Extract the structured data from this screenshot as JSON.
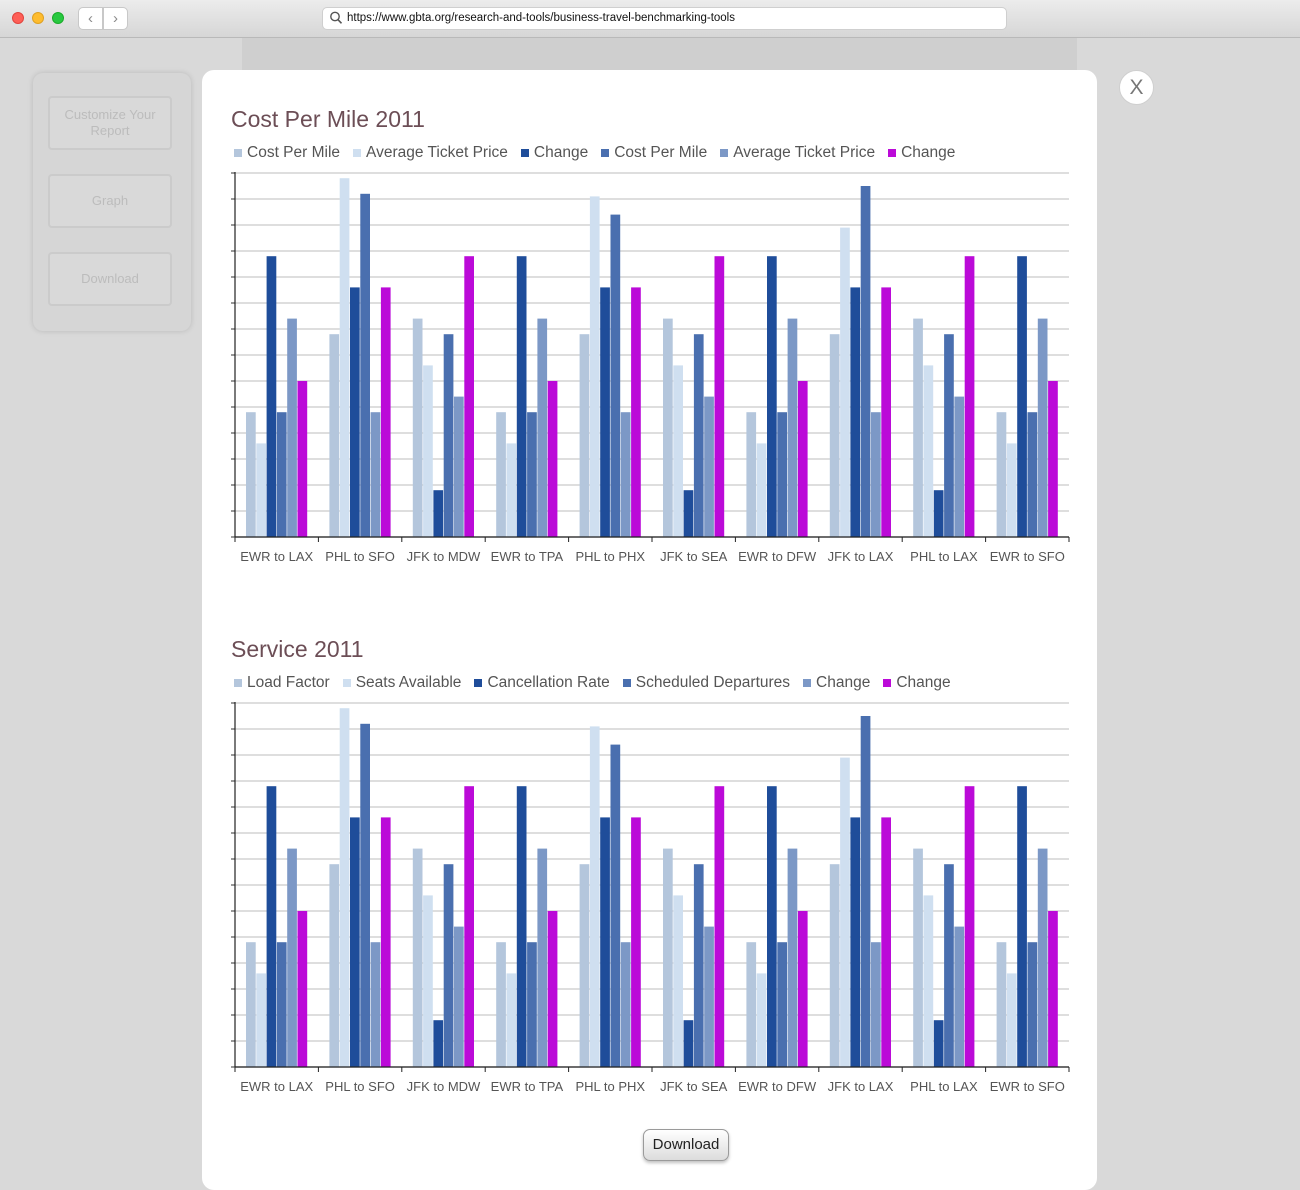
{
  "browser": {
    "url": "https://www.gbta.org/research-and-tools/business-travel-benchmarking-tools",
    "back_label": "‹",
    "forward_label": "›"
  },
  "sidebar": {
    "customize_label": "Customize Your Report",
    "graph_label": "Graph",
    "download_label": "Download"
  },
  "modal": {
    "close_label": "X",
    "download_label": "Download"
  },
  "colors": {
    "series": [
      "#b4c6dc",
      "#cfdff0",
      "#1f4d9a",
      "#4a6faf",
      "#7c98c6",
      "#bb0ad8"
    ]
  },
  "chart_data": [
    {
      "type": "bar",
      "title": "Cost Per Mile 2011",
      "categories": [
        "EWR to LAX",
        "PHL to SFO",
        "JFK to MDW",
        "EWR to TPA",
        "PHL to PHX",
        "JFK to SEA",
        "EWR to DFW",
        "JFK to LAX",
        "PHL to LAX",
        "EWR to SFO"
      ],
      "series": [
        {
          "name": "Cost Per Mile",
          "values": [
            4.8,
            7.8,
            8.4,
            4.8,
            7.8,
            8.4,
            4.8,
            7.8,
            8.4,
            4.8
          ]
        },
        {
          "name": "Average Ticket Price",
          "values": [
            3.6,
            13.8,
            6.6,
            3.6,
            13.1,
            6.6,
            3.6,
            11.9,
            6.6,
            3.6
          ]
        },
        {
          "name": "Change",
          "values": [
            10.8,
            9.6,
            1.8,
            10.8,
            9.6,
            1.8,
            10.8,
            9.6,
            1.8,
            10.8
          ]
        },
        {
          "name": "Cost Per Mile",
          "values": [
            4.8,
            13.2,
            7.8,
            4.8,
            12.4,
            7.8,
            4.8,
            13.5,
            7.8,
            4.8
          ]
        },
        {
          "name": "Average Ticket Price",
          "values": [
            8.4,
            4.8,
            5.4,
            8.4,
            4.8,
            5.4,
            8.4,
            4.8,
            5.4,
            8.4
          ]
        },
        {
          "name": "Change",
          "values": [
            6.0,
            9.6,
            10.8,
            6.0,
            9.6,
            10.8,
            6.0,
            9.6,
            10.8,
            6.0
          ]
        }
      ],
      "ylim": [
        0,
        14
      ],
      "grid": true,
      "legend": "top-left"
    },
    {
      "type": "bar",
      "title": "Service 2011",
      "categories": [
        "EWR to LAX",
        "PHL to SFO",
        "JFK to MDW",
        "EWR to TPA",
        "PHL to PHX",
        "JFK to SEA",
        "EWR to DFW",
        "JFK to LAX",
        "PHL to LAX",
        "EWR to SFO"
      ],
      "series": [
        {
          "name": "Load Factor",
          "values": [
            4.8,
            7.8,
            8.4,
            4.8,
            7.8,
            8.4,
            4.8,
            7.8,
            8.4,
            4.8
          ]
        },
        {
          "name": "Seats Available",
          "values": [
            3.6,
            13.8,
            6.6,
            3.6,
            13.1,
            6.6,
            3.6,
            11.9,
            6.6,
            3.6
          ]
        },
        {
          "name": "Cancellation Rate",
          "values": [
            10.8,
            9.6,
            1.8,
            10.8,
            9.6,
            1.8,
            10.8,
            9.6,
            1.8,
            10.8
          ]
        },
        {
          "name": "Scheduled Departures",
          "values": [
            4.8,
            13.2,
            7.8,
            4.8,
            12.4,
            7.8,
            4.8,
            13.5,
            7.8,
            4.8
          ]
        },
        {
          "name": "Change",
          "values": [
            8.4,
            4.8,
            5.4,
            8.4,
            4.8,
            5.4,
            8.4,
            4.8,
            5.4,
            8.4
          ]
        },
        {
          "name": "Change",
          "values": [
            6.0,
            9.6,
            10.8,
            6.0,
            9.6,
            10.8,
            6.0,
            9.6,
            10.8,
            6.0
          ]
        }
      ],
      "ylim": [
        0,
        14
      ],
      "grid": true,
      "legend": "top-left"
    }
  ]
}
